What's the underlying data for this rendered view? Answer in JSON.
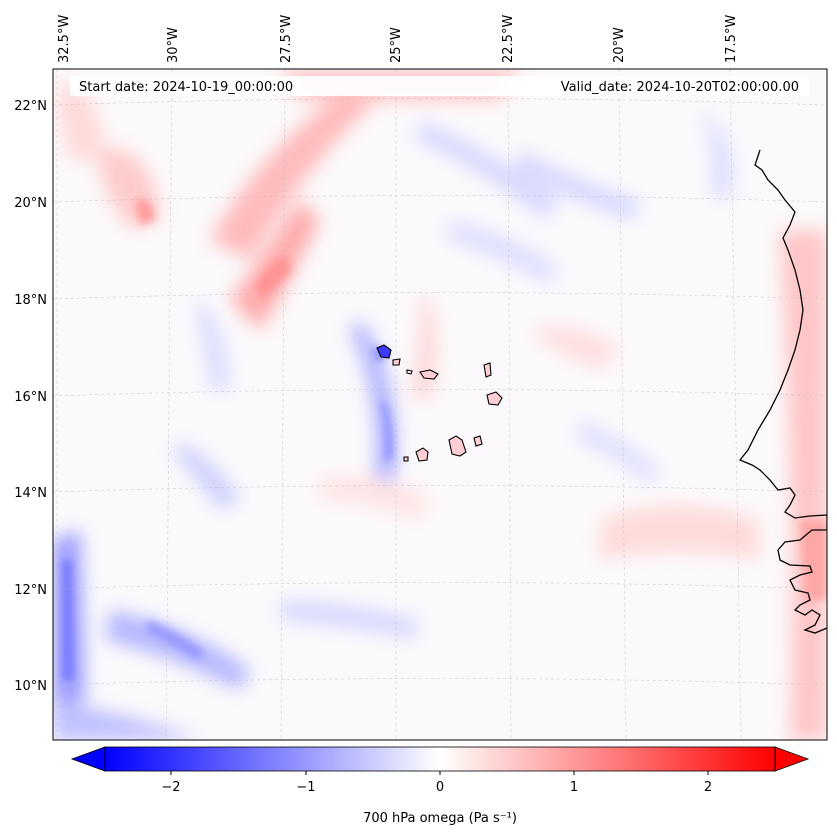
{
  "header": {
    "start_date": "Start date: 2024-10-19_00:00:00",
    "valid_date": "Valid_date: 2024-10-20T02:00:00.00"
  },
  "map": {
    "projection": "lambert-conformal",
    "longitude_labels": [
      "32.5°W",
      "30°W",
      "27.5°W",
      "25°W",
      "22.5°W",
      "20°W",
      "17.5°W"
    ],
    "latitude_labels": [
      "22°N",
      "20°N",
      "18°N",
      "16°N",
      "14°N",
      "12°N",
      "10°N"
    ],
    "gridlines": true,
    "coastline_color": "#000000",
    "islands": "Cape Verde",
    "coast": "West Africa (Senegal / Gambia)"
  },
  "colorbar": {
    "label": "700 hPa omega (Pa s⁻¹)",
    "ticks": [
      "−2",
      "−1",
      "0",
      "1",
      "2"
    ],
    "min": -2.6,
    "max": 2.6,
    "extend": "both",
    "colormap": "bwr",
    "color_low": "#0000ff",
    "color_mid": "#ffffff",
    "color_high": "#ff0000"
  }
}
